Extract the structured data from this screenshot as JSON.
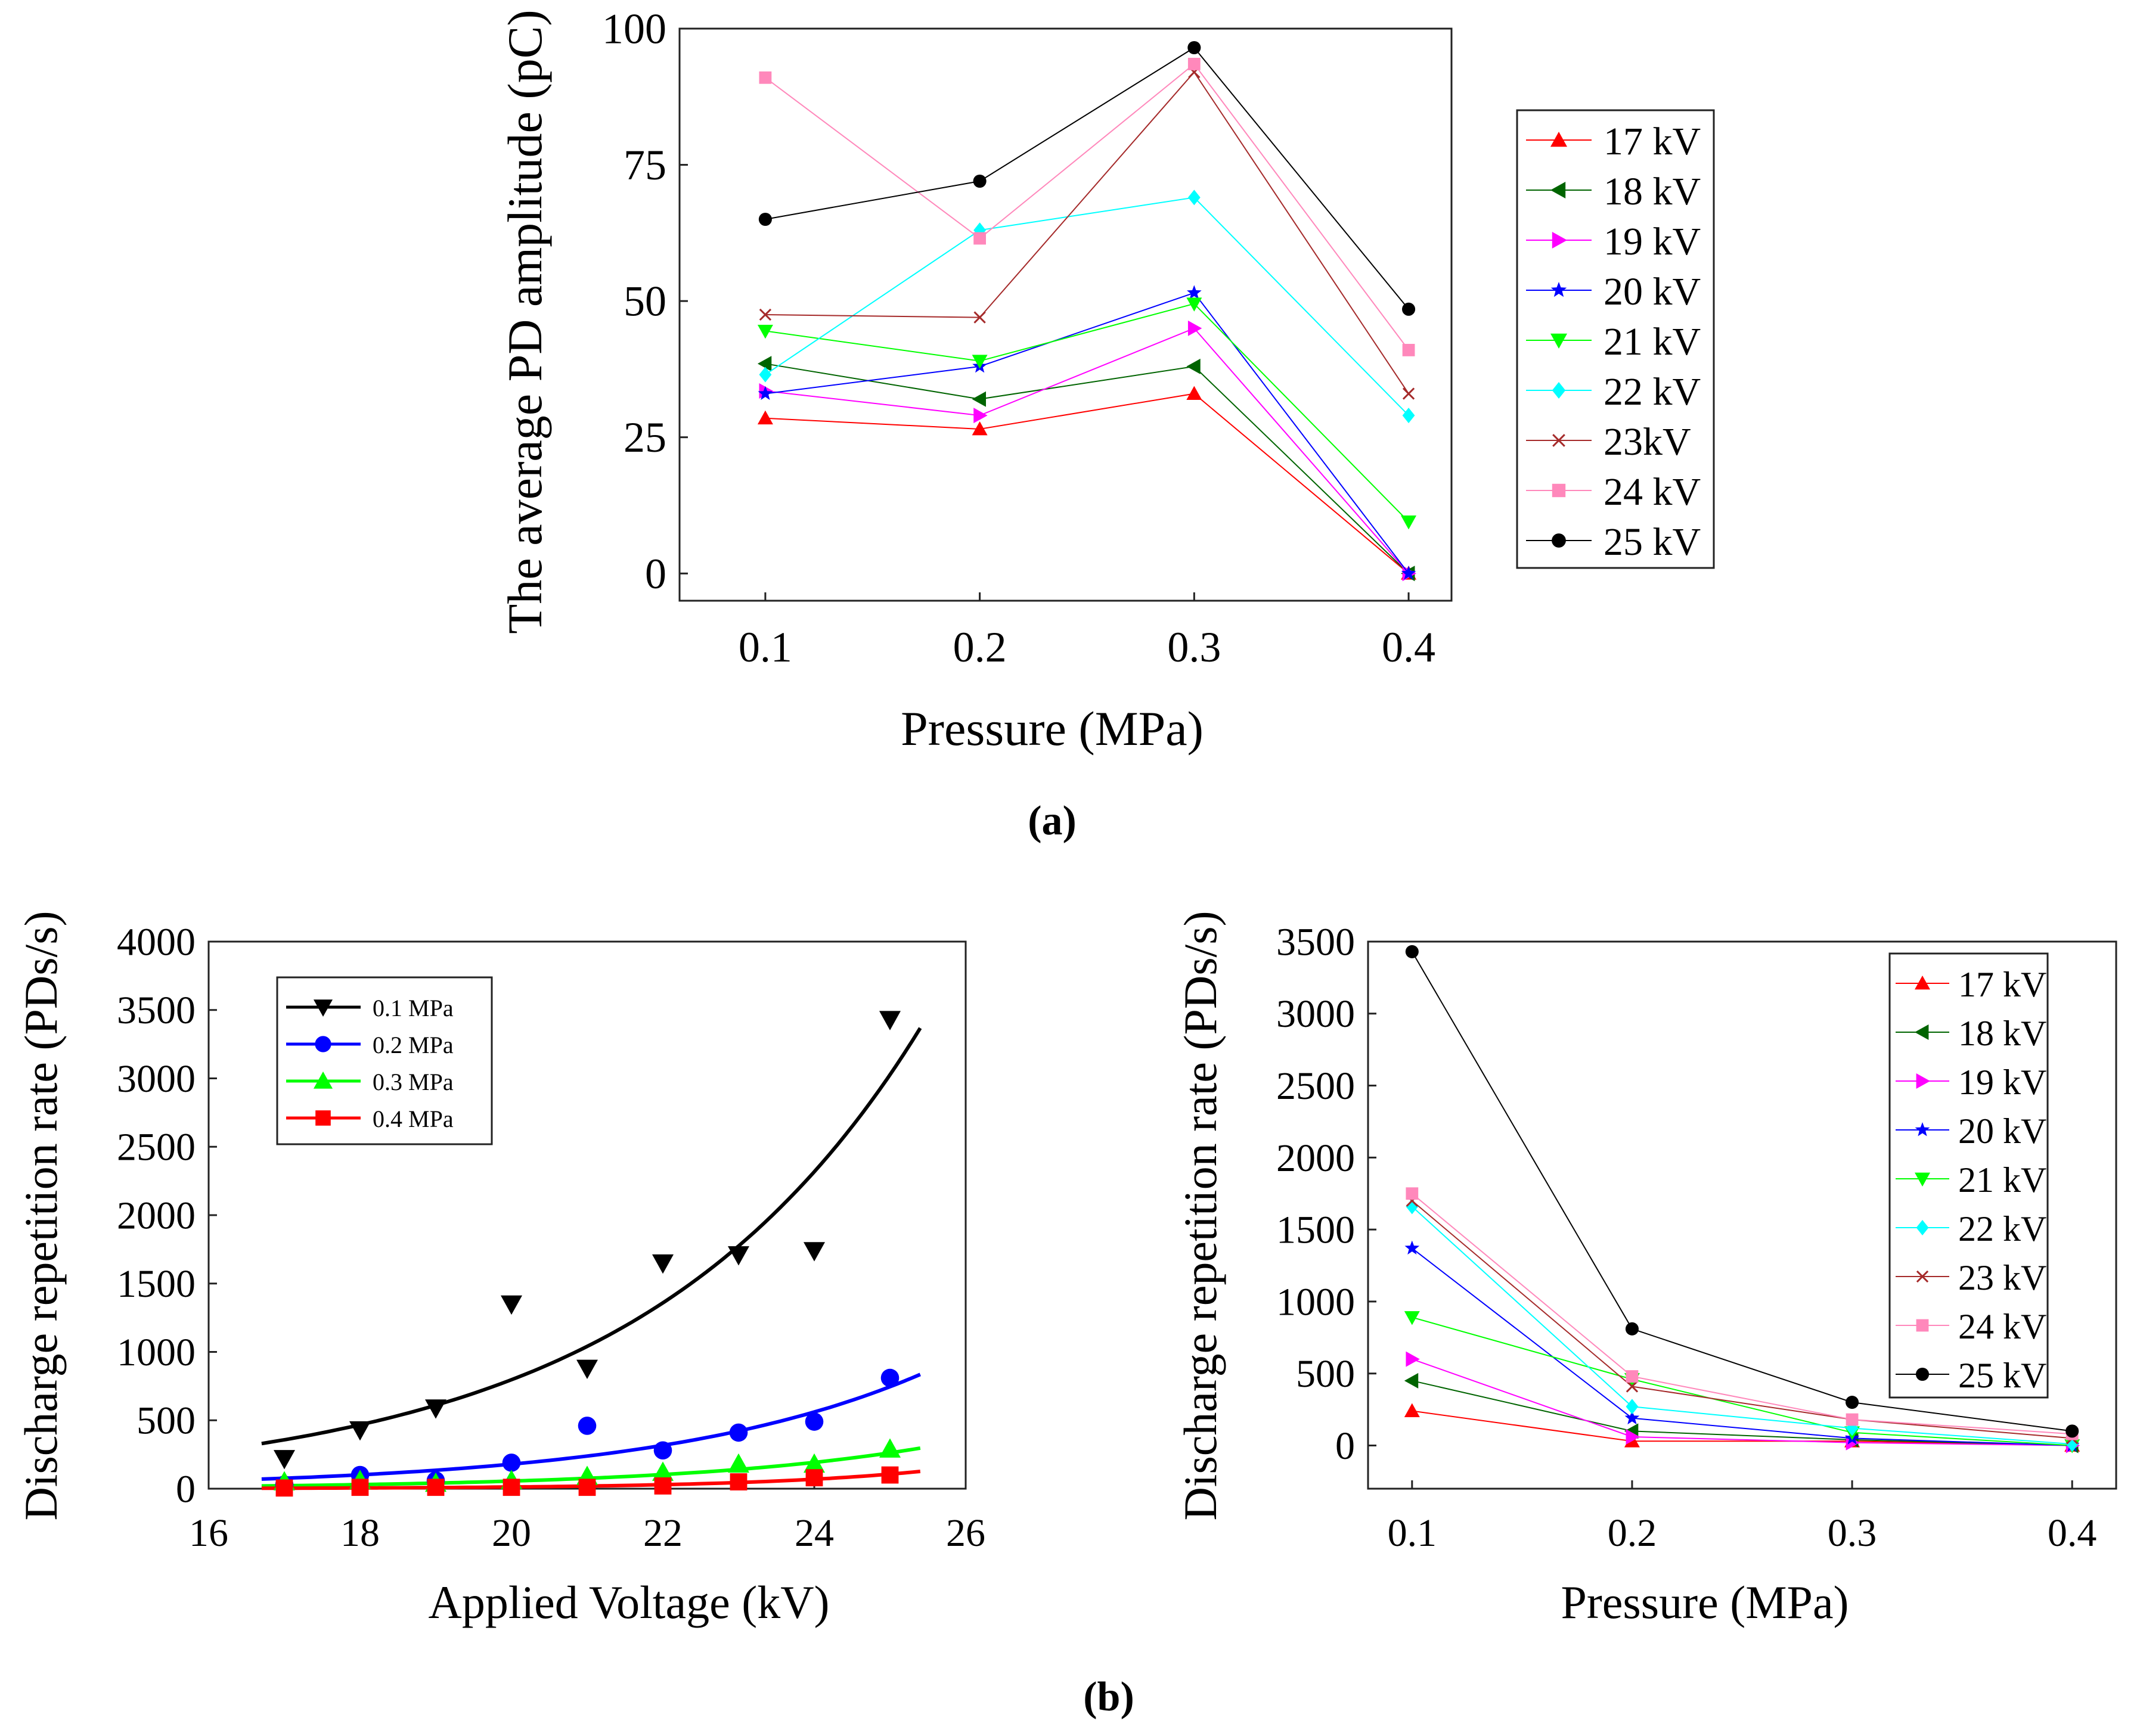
{
  "figure_labels": {
    "a": "(a)",
    "b": "(b)"
  },
  "chart_data": [
    {
      "id": "a",
      "type": "line",
      "title": "",
      "xlabel": "Pressure (MPa)",
      "ylabel": "The average PD amplitude  (pC)",
      "x": [
        0.1,
        0.2,
        0.3,
        0.4
      ],
      "xticks": [
        "0.1",
        "0.2",
        "0.3",
        "0.4"
      ],
      "xlim": [
        0.06,
        0.42
      ],
      "ylim": [
        -5,
        100
      ],
      "yticks": [
        "0",
        "25",
        "50",
        "75",
        "100"
      ],
      "legend_position": "outside-right",
      "series": [
        {
          "name": "17 kV",
          "color": "#ff0000",
          "marker": "triangle-up",
          "values": [
            28.5,
            26.5,
            33,
            0
          ]
        },
        {
          "name": "18 kV",
          "color": "#006400",
          "marker": "triangle-left",
          "values": [
            38.5,
            32,
            38,
            0
          ]
        },
        {
          "name": "19 kV",
          "color": "#ff00ff",
          "marker": "triangle-right",
          "values": [
            33.5,
            29,
            45,
            0
          ]
        },
        {
          "name": "20 kV",
          "color": "#0000ff",
          "marker": "star",
          "values": [
            33,
            38,
            51.5,
            0
          ]
        },
        {
          "name": "21 kV",
          "color": "#00ff00",
          "marker": "triangle-down",
          "values": [
            44.5,
            39,
            49.5,
            9.5
          ]
        },
        {
          "name": "22 kV",
          "color": "#00ffff",
          "marker": "diamond",
          "values": [
            36.5,
            63,
            69,
            29
          ]
        },
        {
          "name": "23kV",
          "color": "#a52a2a",
          "marker": "x",
          "values": [
            47.5,
            47,
            92,
            33
          ]
        },
        {
          "name": "24 kV",
          "color": "#ff88bb",
          "marker": "square",
          "values": [
            91,
            61.5,
            93.5,
            41
          ]
        },
        {
          "name": "25 kV",
          "color": "#000000",
          "marker": "circle",
          "values": [
            65,
            72,
            96.5,
            48.5
          ]
        }
      ]
    },
    {
      "id": "b-left",
      "type": "scatter",
      "title": "",
      "xlabel": "Applied Voltage (kV)",
      "ylabel": "Discharge repetition rate (PDs/s)",
      "xlim": [
        16,
        26
      ],
      "ylim": [
        0,
        4000
      ],
      "xticks": [
        "16",
        "18",
        "20",
        "22",
        "24",
        "26"
      ],
      "yticks": [
        "0",
        "500",
        "1000",
        "1500",
        "2000",
        "2500",
        "3000",
        "3500",
        "4000"
      ],
      "legend_position": "top-left",
      "x": [
        17,
        18,
        19,
        20,
        21,
        22,
        23,
        24,
        25
      ],
      "fit_range": [
        16.7,
        25.4
      ],
      "series": [
        {
          "name": "0.1 MPa",
          "color": "#000000",
          "marker": "triangle-down",
          "values": [
            220,
            430,
            590,
            1350,
            880,
            1650,
            1710,
            1740,
            3430
          ],
          "fit": {
            "a": 330,
            "b": 0.267,
            "x0": 16.7
          }
        },
        {
          "name": "0.2 MPa",
          "color": "#0000ff",
          "marker": "circle",
          "values": [
            30,
            100,
            60,
            190,
            460,
            280,
            410,
            490,
            810
          ],
          "fit": {
            "a": 70,
            "b": 0.285,
            "x0": 16.7
          }
        },
        {
          "name": "0.3 MPa",
          "color": "#00ff00",
          "marker": "triangle-up",
          "values": [
            50,
            60,
            40,
            60,
            90,
            120,
            180,
            180,
            290
          ],
          "fit": {
            "a": 20,
            "b": 0.31,
            "x0": 16.7
          }
        },
        {
          "name": "0.4 MPa",
          "color": "#ff0000",
          "marker": "square",
          "values": [
            5,
            10,
            10,
            10,
            10,
            20,
            50,
            80,
            100
          ],
          "fit": {
            "a": 3,
            "b": 0.43,
            "x0": 16.7
          }
        }
      ]
    },
    {
      "id": "b-right",
      "type": "line",
      "title": "",
      "xlabel": "Pressure (MPa)",
      "ylabel": "Discharge repetition rate (PDs/s)",
      "x": [
        0.1,
        0.2,
        0.3,
        0.4
      ],
      "xticks": [
        "0.1",
        "0.2",
        "0.3",
        "0.4"
      ],
      "xlim": [
        0.08,
        0.42
      ],
      "ylim": [
        -300,
        3500
      ],
      "yticks": [
        "0",
        "500",
        "1000",
        "1500",
        "2000",
        "2500",
        "3000",
        "3500"
      ],
      "legend_position": "top-right",
      "series": [
        {
          "name": "17 kV",
          "color": "#ff0000",
          "marker": "triangle-up",
          "values": [
            240,
            30,
            30,
            0
          ]
        },
        {
          "name": "18 kV",
          "color": "#006400",
          "marker": "triangle-left",
          "values": [
            450,
            100,
            40,
            0
          ]
        },
        {
          "name": "19 kV",
          "color": "#ff00ff",
          "marker": "triangle-right",
          "values": [
            600,
            60,
            20,
            0
          ]
        },
        {
          "name": "20 kV",
          "color": "#0000ff",
          "marker": "star",
          "values": [
            1370,
            190,
            50,
            0
          ]
        },
        {
          "name": "21 kV",
          "color": "#00ff00",
          "marker": "triangle-down",
          "values": [
            890,
            460,
            90,
            0
          ]
        },
        {
          "name": "22 kV",
          "color": "#00ffff",
          "marker": "diamond",
          "values": [
            1660,
            270,
            120,
            10
          ]
        },
        {
          "name": "23 kV",
          "color": "#a52a2a",
          "marker": "x",
          "values": [
            1700,
            410,
            180,
            50
          ]
        },
        {
          "name": "24 kV",
          "color": "#ff88bb",
          "marker": "square",
          "values": [
            1750,
            480,
            180,
            80
          ]
        },
        {
          "name": "25 kV",
          "color": "#000000",
          "marker": "circle",
          "values": [
            3430,
            810,
            300,
            100
          ]
        }
      ]
    }
  ]
}
